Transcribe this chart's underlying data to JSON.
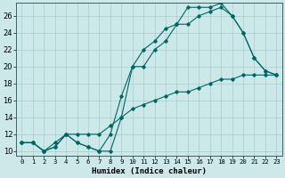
{
  "xlabel": "Humidex (Indice chaleur)",
  "bg_color": "#cce8e8",
  "grid_color": "#aacccc",
  "line_color": "#006666",
  "xlim": [
    -0.5,
    23.5
  ],
  "ylim": [
    9.5,
    27.5
  ],
  "xticks": [
    0,
    1,
    2,
    3,
    4,
    5,
    6,
    7,
    8,
    9,
    10,
    11,
    12,
    13,
    14,
    15,
    16,
    17,
    18,
    19,
    20,
    21,
    22,
    23
  ],
  "yticks": [
    10,
    12,
    14,
    16,
    18,
    20,
    22,
    24,
    26
  ],
  "series1_x": [
    0,
    1,
    2,
    3,
    4,
    5,
    6,
    7,
    8,
    9,
    10,
    11,
    12,
    13,
    14,
    15,
    16,
    17,
    18,
    19,
    20,
    21,
    22,
    23
  ],
  "series1_y": [
    11,
    11,
    10,
    10.5,
    12,
    11,
    10.5,
    10,
    10,
    14,
    20,
    22,
    23,
    24.5,
    25,
    27,
    27,
    27,
    27.5,
    26,
    24,
    21,
    19.5,
    19
  ],
  "series2_x": [
    0,
    1,
    2,
    3,
    4,
    5,
    6,
    7,
    8,
    9,
    10,
    11,
    12,
    13,
    14,
    15,
    16,
    17,
    18,
    19,
    20,
    21,
    22,
    23
  ],
  "series2_y": [
    11,
    11,
    10,
    10.5,
    12,
    11,
    10.5,
    10,
    12,
    16.5,
    20,
    20,
    22,
    23,
    25,
    25,
    26,
    26.5,
    27,
    26,
    24,
    21,
    19.5,
    19
  ],
  "series3_x": [
    0,
    1,
    2,
    3,
    4,
    5,
    6,
    7,
    8,
    9,
    10,
    11,
    12,
    13,
    14,
    15,
    16,
    17,
    18,
    19,
    20,
    21,
    22,
    23
  ],
  "series3_y": [
    11,
    11,
    10,
    11,
    12,
    12,
    12,
    12,
    13,
    14,
    15,
    15.5,
    16,
    16.5,
    17,
    17,
    17.5,
    18,
    18.5,
    18.5,
    19,
    19,
    19,
    19
  ],
  "xlabel_fontsize": 6.5,
  "tick_fontsize": 5.2,
  "ytick_fontsize": 6.0,
  "lw": 0.8,
  "ms": 1.8
}
